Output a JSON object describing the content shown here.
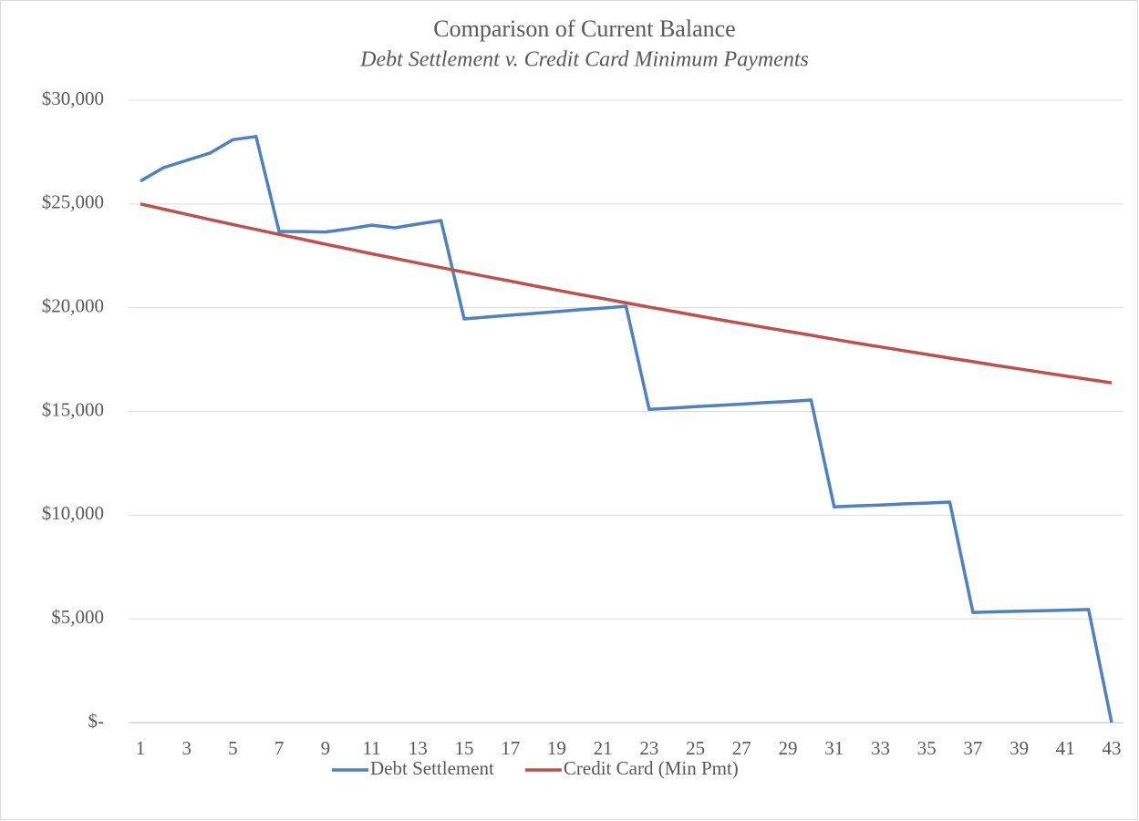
{
  "chart_data": {
    "type": "line",
    "title": "Comparison of Current Balance",
    "subtitle": "Debt Settlement v. Credit Card Minimum Payments",
    "categories": [
      1,
      null,
      3,
      null,
      5,
      null,
      7,
      null,
      9,
      null,
      11,
      null,
      13,
      null,
      15,
      null,
      17,
      null,
      19,
      null,
      21,
      null,
      23,
      null,
      25,
      null,
      27,
      null,
      29,
      null,
      31,
      null,
      33,
      null,
      35,
      null,
      37,
      null,
      39,
      null,
      41,
      null,
      43
    ],
    "series": [
      {
        "name": "Debt Settlement",
        "color": "#4f81bd",
        "values": [
          26100,
          26750,
          27100,
          27450,
          28100,
          28250,
          23670,
          23670,
          23650,
          23800,
          23980,
          23850,
          24030,
          24200,
          19460,
          19550,
          19640,
          19720,
          19810,
          19900,
          19980,
          20070,
          15100,
          15160,
          15230,
          15290,
          15350,
          15420,
          15480,
          15550,
          10400,
          10450,
          10490,
          10540,
          10580,
          10630,
          5310,
          5340,
          5370,
          5390,
          5420,
          5450,
          0
        ]
      },
      {
        "name": "Credit Card (Min Pmt)",
        "color": "#c0504d",
        "values": [
          25000,
          24750,
          24500,
          24250,
          24010,
          23770,
          23530,
          23300,
          23060,
          22830,
          22600,
          22380,
          22150,
          21930,
          21710,
          21490,
          21280,
          21060,
          20850,
          20640,
          20440,
          20230,
          20030,
          19830,
          19630,
          19430,
          19240,
          19050,
          18860,
          18670,
          18480,
          18290,
          18110,
          17930,
          17750,
          17570,
          17400,
          17220,
          17050,
          16880,
          16710,
          16540,
          16380
        ]
      }
    ],
    "ylim": [
      0,
      30000
    ],
    "yticks": [
      {
        "value": 0,
        "label": "$-"
      },
      {
        "value": 5000,
        "label": "$5,000"
      },
      {
        "value": 10000,
        "label": "$10,000"
      },
      {
        "value": 15000,
        "label": "$15,000"
      },
      {
        "value": 20000,
        "label": "$20,000"
      },
      {
        "value": 25000,
        "label": "$25,000"
      },
      {
        "value": 30000,
        "label": "$30,000"
      }
    ],
    "grid": true,
    "legend": "bottom"
  }
}
